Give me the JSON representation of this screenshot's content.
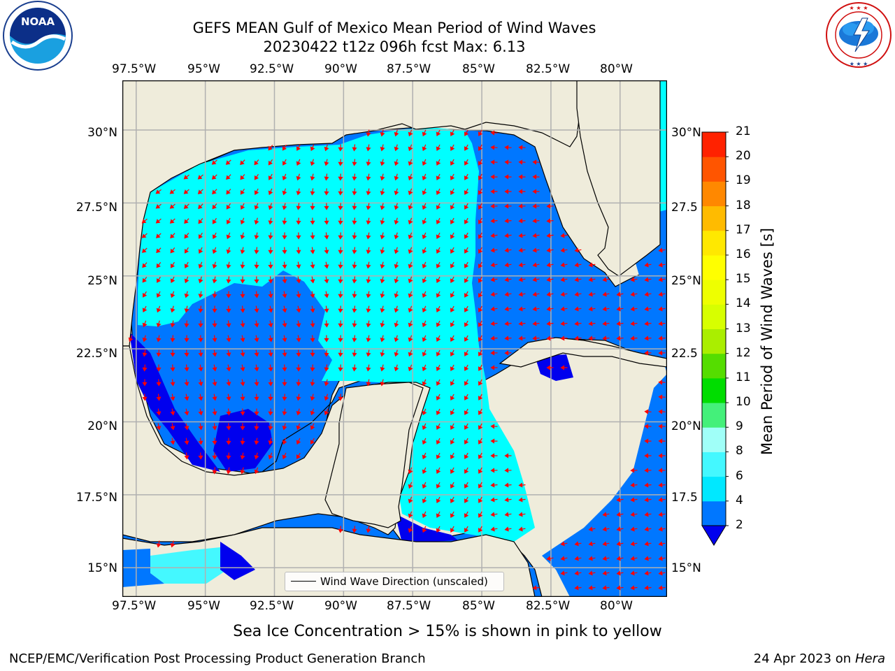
{
  "header": {
    "title_line1": "GEFS MEAN Gulf of Mexico Mean Period of Wind Waves",
    "title_line2": "20230422 t12z 096h fcst   Max: 6.13"
  },
  "logos": {
    "noaa_text": "NOAA",
    "noaa_ring_text": "NATIONAL OCEANIC AND ATMOSPHERIC ADMINISTRATION · U.S. DEPARTMENT OF COMMERCE",
    "nws_ring_text": "NATIONAL WEATHER SERVICE"
  },
  "map": {
    "lon_ticks": [
      "97.5°W",
      "95°W",
      "92.5°W",
      "90°W",
      "87.5°W",
      "85°W",
      "82.5°W",
      "80°W"
    ],
    "lon_values": [
      -97.5,
      -95,
      -92.5,
      -90,
      -87.5,
      -85,
      -82.5,
      -80
    ],
    "lat_ticks": [
      "30°N",
      "27.5°N",
      "25°N",
      "22.5°N",
      "20°N",
      "17.5°N",
      "15°N"
    ],
    "lat_ticks_right": [
      "30°N",
      "27.5",
      "25°N",
      "22.5",
      "20°N",
      "17.5",
      "15°N"
    ],
    "lat_values": [
      30,
      27.5,
      25,
      22.5,
      20,
      17.5,
      15
    ],
    "lon_range": [
      -98,
      -78.3
    ],
    "lat_range": [
      14,
      31.7
    ],
    "land_color": "#efecdb",
    "arrow_color": "#ff0000",
    "grid_color": "#b0b0b0",
    "legend_label": "Wind Wave Direction (unscaled)"
  },
  "colorbar": {
    "label": "Mean Period of Wind Waves [s]",
    "tick_labels": [
      "2",
      "4",
      "6",
      "8",
      "9",
      "10",
      "11",
      "12",
      "13",
      "14",
      "15",
      "16",
      "17",
      "18",
      "19",
      "20",
      "21"
    ],
    "colors": [
      "#0077ff",
      "#00e8ff",
      "#44f8ff",
      "#a0fff8",
      "#44f07a",
      "#00dd00",
      "#55dd00",
      "#aaee00",
      "#d7ff00",
      "#eeff00",
      "#ffff00",
      "#ffe800",
      "#ffbb00",
      "#ff8800",
      "#ff5500",
      "#ff2200"
    ],
    "under_color": "#0000ee"
  },
  "footer": {
    "ice_note": "Sea Ice Concentration > 15% is shown in pink to yellow",
    "credit": "NCEP/EMC/Verification Post Processing Product Generation Branch",
    "date": "24 Apr 2023 on",
    "machine": "Hera"
  }
}
